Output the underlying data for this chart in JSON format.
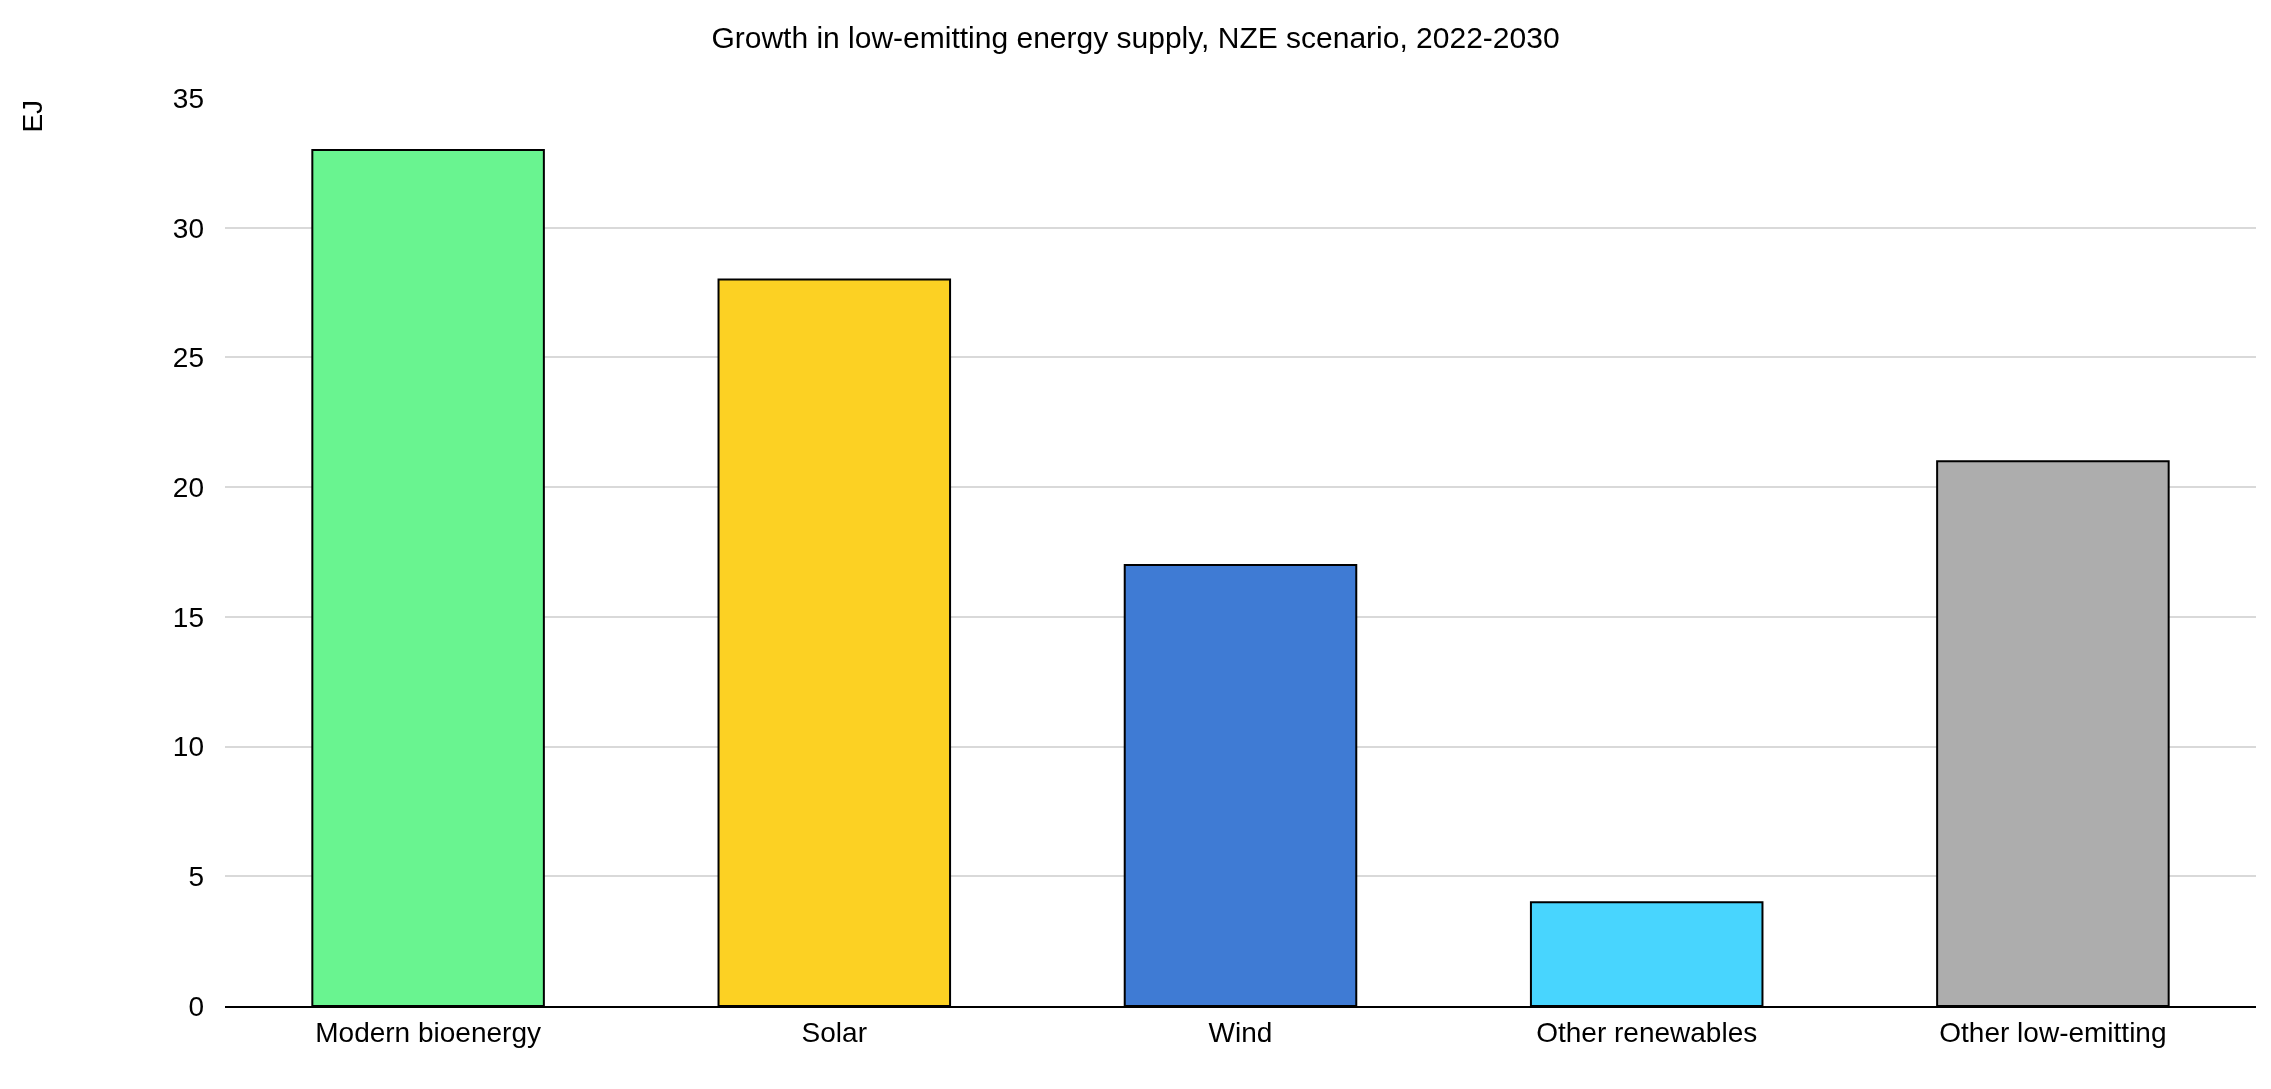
{
  "chart_data": {
    "type": "bar",
    "title": "Growth in low-emitting energy supply, NZE scenario, 2022-2030",
    "ylabel": "EJ",
    "categories": [
      "Modern bioenergy",
      "Solar",
      "Wind",
      "Other renewables",
      "Other low-emitting"
    ],
    "values": [
      33,
      28,
      17,
      4,
      21
    ],
    "colors": [
      "#69f490",
      "#fcd123",
      "#3f7bd4",
      "#48d5fe",
      "#adadad"
    ],
    "ylim": [
      0,
      35
    ],
    "yticks": [
      0,
      5,
      10,
      15,
      20,
      25,
      30,
      35
    ],
    "grid": "y",
    "legend": false
  }
}
